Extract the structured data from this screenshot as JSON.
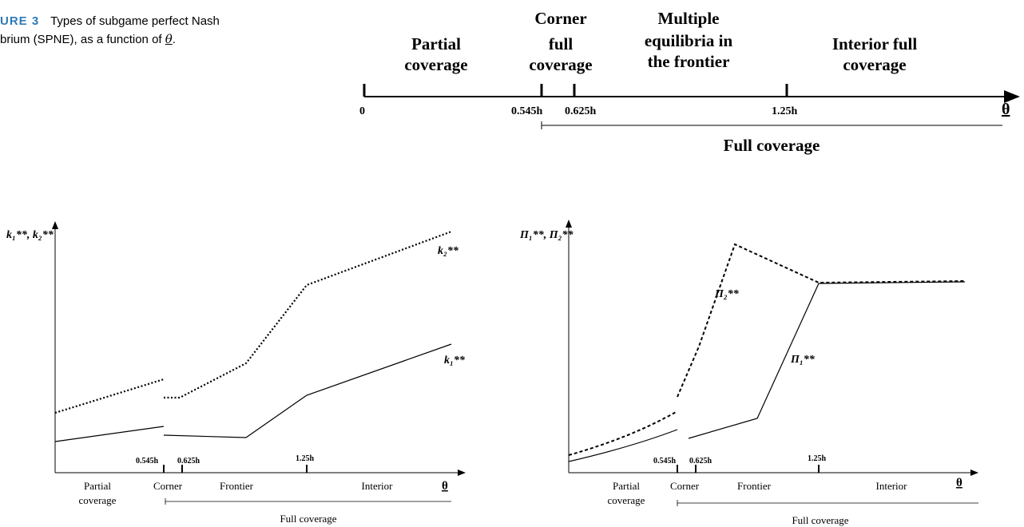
{
  "caption": {
    "label": "URE 3",
    "text_line1": "Types of subgame perfect Nash",
    "text_line2_prefix": "brium (SPNE), as a function of",
    "theta": "θ",
    "text_line2_suffix": "."
  },
  "timeline": {
    "regions": {
      "partial": [
        "Partial",
        "coverage"
      ],
      "corner": [
        "Corner",
        "full",
        "coverage"
      ],
      "multiple": [
        "Multiple",
        "equilibria in",
        "the frontier"
      ],
      "interior": [
        "Interior full",
        "coverage"
      ]
    },
    "ticks": {
      "zero": "0",
      "t0545": "0.545h",
      "t0625": "0.625h",
      "t125": "1.25h"
    },
    "axis_label": "θ",
    "full_coverage": "Full coverage"
  },
  "left_panel": {
    "ylabel": "k₁**, k₂**",
    "series": {
      "k2_label": "k₂**",
      "k1_label": "k₁**"
    },
    "ticks": {
      "t0545": "0.545h",
      "t0625": "0.625h",
      "t125": "1.25h"
    },
    "regions": {
      "partial": [
        "Partial",
        "coverage"
      ],
      "corner": "Corner",
      "frontier": "Frontier",
      "interior": "Interior"
    },
    "axis_label": "θ",
    "full_coverage": "Full coverage"
  },
  "right_panel": {
    "ylabel": "Π₁**, Π₂**",
    "series": {
      "pi2_label": "Π₂**",
      "pi1_label": "Π₁**"
    },
    "ticks": {
      "t0545": "0.545h",
      "t0625": "0.625h",
      "t125": "1.25h"
    },
    "regions": {
      "partial": [
        "Partial",
        "coverage"
      ],
      "corner": "Corner",
      "frontier": "Frontier",
      "interior": "Interior"
    },
    "axis_label": "θ",
    "full_coverage": "Full coverage"
  }
}
